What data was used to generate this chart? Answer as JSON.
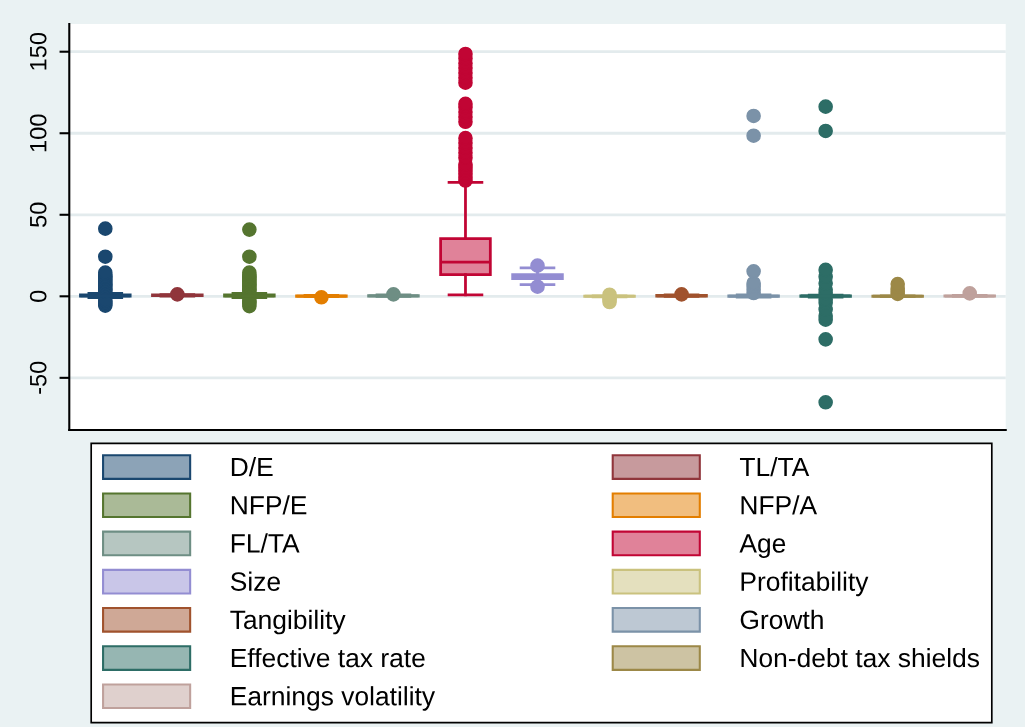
{
  "chart_data": {
    "type": "box",
    "categories": [
      null,
      null,
      null,
      null,
      null,
      null,
      null,
      null,
      null,
      null,
      null,
      null,
      null
    ],
    "tick_labels": "y",
    "ylim": [
      -82,
      167
    ],
    "yticks": [
      -50,
      0,
      50,
      100,
      150
    ],
    "grid": "y",
    "legend": "bottom",
    "marker": "circle",
    "series": [
      {
        "name": "D/E",
        "color": "#1a476f",
        "boxes": [
          {
            "low": -0.8,
            "q1": 0.1,
            "median": 0.3,
            "q3": 0.8,
            "high": 1.8,
            "outliers": [
              -5.7,
              -4.5,
              -3.5,
              -2.5,
              3,
              4,
              5,
              6,
              7,
              8,
              9,
              10,
              11,
              12,
              13,
              14.5,
              24.3,
              41.5
            ]
          },
          null,
          null,
          null,
          null,
          null,
          null,
          null,
          null,
          null,
          null,
          null,
          null
        ]
      },
      {
        "name": "TL/TA",
        "color": "#90353b",
        "boxes": [
          null,
          {
            "low": 0.1,
            "q1": 0.4,
            "median": 0.6,
            "q3": 0.8,
            "high": 1.0,
            "outliers": [
              1.2
            ]
          },
          null,
          null,
          null,
          null,
          null,
          null,
          null,
          null,
          null,
          null,
          null
        ]
      },
      {
        "name": "NFP/E",
        "color": "#55752f",
        "boxes": [
          null,
          null,
          {
            "low": -0.8,
            "q1": 0.1,
            "median": 0.3,
            "q3": 0.8,
            "high": 1.8,
            "outliers": [
              -6,
              -4.5,
              -3.5,
              -2.5,
              3,
              4,
              5,
              6,
              7,
              8,
              9,
              10,
              11,
              12,
              13,
              14.5,
              24.3,
              40.9
            ]
          },
          null,
          null,
          null,
          null,
          null,
          null,
          null,
          null,
          null,
          null
        ]
      },
      {
        "name": "NFP/A",
        "color": "#e37e00",
        "boxes": [
          null,
          null,
          null,
          {
            "low": -0.2,
            "q1": 0,
            "median": 0.1,
            "q3": 0.3,
            "high": 0.6,
            "outliers": [
              -0.6
            ]
          },
          null,
          null,
          null,
          null,
          null,
          null,
          null,
          null,
          null
        ]
      },
      {
        "name": "FL/TA",
        "color": "#6e8e84",
        "boxes": [
          null,
          null,
          null,
          null,
          {
            "low": 0,
            "q1": 0.1,
            "median": 0.2,
            "q3": 0.4,
            "high": 0.8,
            "outliers": [
              1.2
            ]
          },
          null,
          null,
          null,
          null,
          null,
          null,
          null,
          null
        ]
      },
      {
        "name": "Age",
        "color": "#c10534",
        "boxes": [
          null,
          null,
          null,
          null,
          null,
          {
            "low": 0.9,
            "q1": 13.3,
            "median": 20.9,
            "q3": 35.4,
            "high": 69.9,
            "outliers": [
              71,
              73,
              75,
              77,
              79,
              81,
              85,
              88,
              91,
              94,
              97,
              107,
              110,
              113,
              116,
              118,
              131,
              134,
              137,
              140,
              143,
              146,
              148.6
            ]
          },
          null,
          null,
          null,
          null,
          null,
          null,
          null
        ]
      },
      {
        "name": "Size",
        "color": "#938dd2",
        "boxes": [
          null,
          null,
          null,
          null,
          null,
          null,
          {
            "low": 7.2,
            "q1": 10.9,
            "median": 12.1,
            "q3": 13.3,
            "high": 17.4,
            "outliers": [
              5.9,
              18.8
            ]
          },
          null,
          null,
          null,
          null,
          null,
          null
        ]
      },
      {
        "name": "Profitability",
        "color": "#cac27e",
        "boxes": [
          null,
          null,
          null,
          null,
          null,
          null,
          null,
          {
            "low": -0.3,
            "q1": 0,
            "median": 0.05,
            "q3": 0.1,
            "high": 0.3,
            "outliers": [
              -3.5,
              -2,
              -1,
              1
            ]
          },
          null,
          null,
          null,
          null,
          null
        ]
      },
      {
        "name": "Tangibility",
        "color": "#a0522d",
        "boxes": [
          null,
          null,
          null,
          null,
          null,
          null,
          null,
          null,
          {
            "low": 0,
            "q1": 0.1,
            "median": 0.3,
            "q3": 0.5,
            "high": 0.9,
            "outliers": [
              1.2
            ]
          },
          null,
          null,
          null,
          null
        ]
      },
      {
        "name": "Growth",
        "color": "#7b92a8",
        "boxes": [
          null,
          null,
          null,
          null,
          null,
          null,
          null,
          null,
          null,
          {
            "low": -0.5,
            "q1": 0,
            "median": 0.1,
            "q3": 0.3,
            "high": 0.8,
            "outliers": [
              2,
              4,
              6,
              8,
              15.3,
              98.5,
              110.6
            ]
          },
          null,
          null,
          null
        ]
      },
      {
        "name": "Effective tax rate",
        "color": "#2d6d66",
        "boxes": [
          null,
          null,
          null,
          null,
          null,
          null,
          null,
          null,
          null,
          null,
          {
            "low": -0.5,
            "q1": 0,
            "median": 0.2,
            "q3": 0.3,
            "high": 0.7,
            "outliers": [
              -65,
              -26.4,
              -14.3,
              -12,
              -8,
              -4,
              -2,
              2,
              4,
              8,
              12,
              16.2,
              101.4,
              116.3
            ]
          },
          null,
          null
        ]
      },
      {
        "name": "Non-debt tax shields",
        "color": "#9c8847",
        "boxes": [
          null,
          null,
          null,
          null,
          null,
          null,
          null,
          null,
          null,
          null,
          null,
          {
            "low": 0,
            "q1": 0,
            "median": 0.05,
            "q3": 0.1,
            "high": 0.3,
            "outliers": [
              1.5,
              3,
              5,
              7.5
            ]
          },
          null
        ]
      },
      {
        "name": "Earnings volatility",
        "color": "#bfa19c",
        "boxes": [
          null,
          null,
          null,
          null,
          null,
          null,
          null,
          null,
          null,
          null,
          null,
          null,
          {
            "low": 0,
            "q1": 0.05,
            "median": 0.1,
            "q3": 0.2,
            "high": 0.5,
            "outliers": [
              1.8
            ]
          }
        ]
      }
    ]
  }
}
